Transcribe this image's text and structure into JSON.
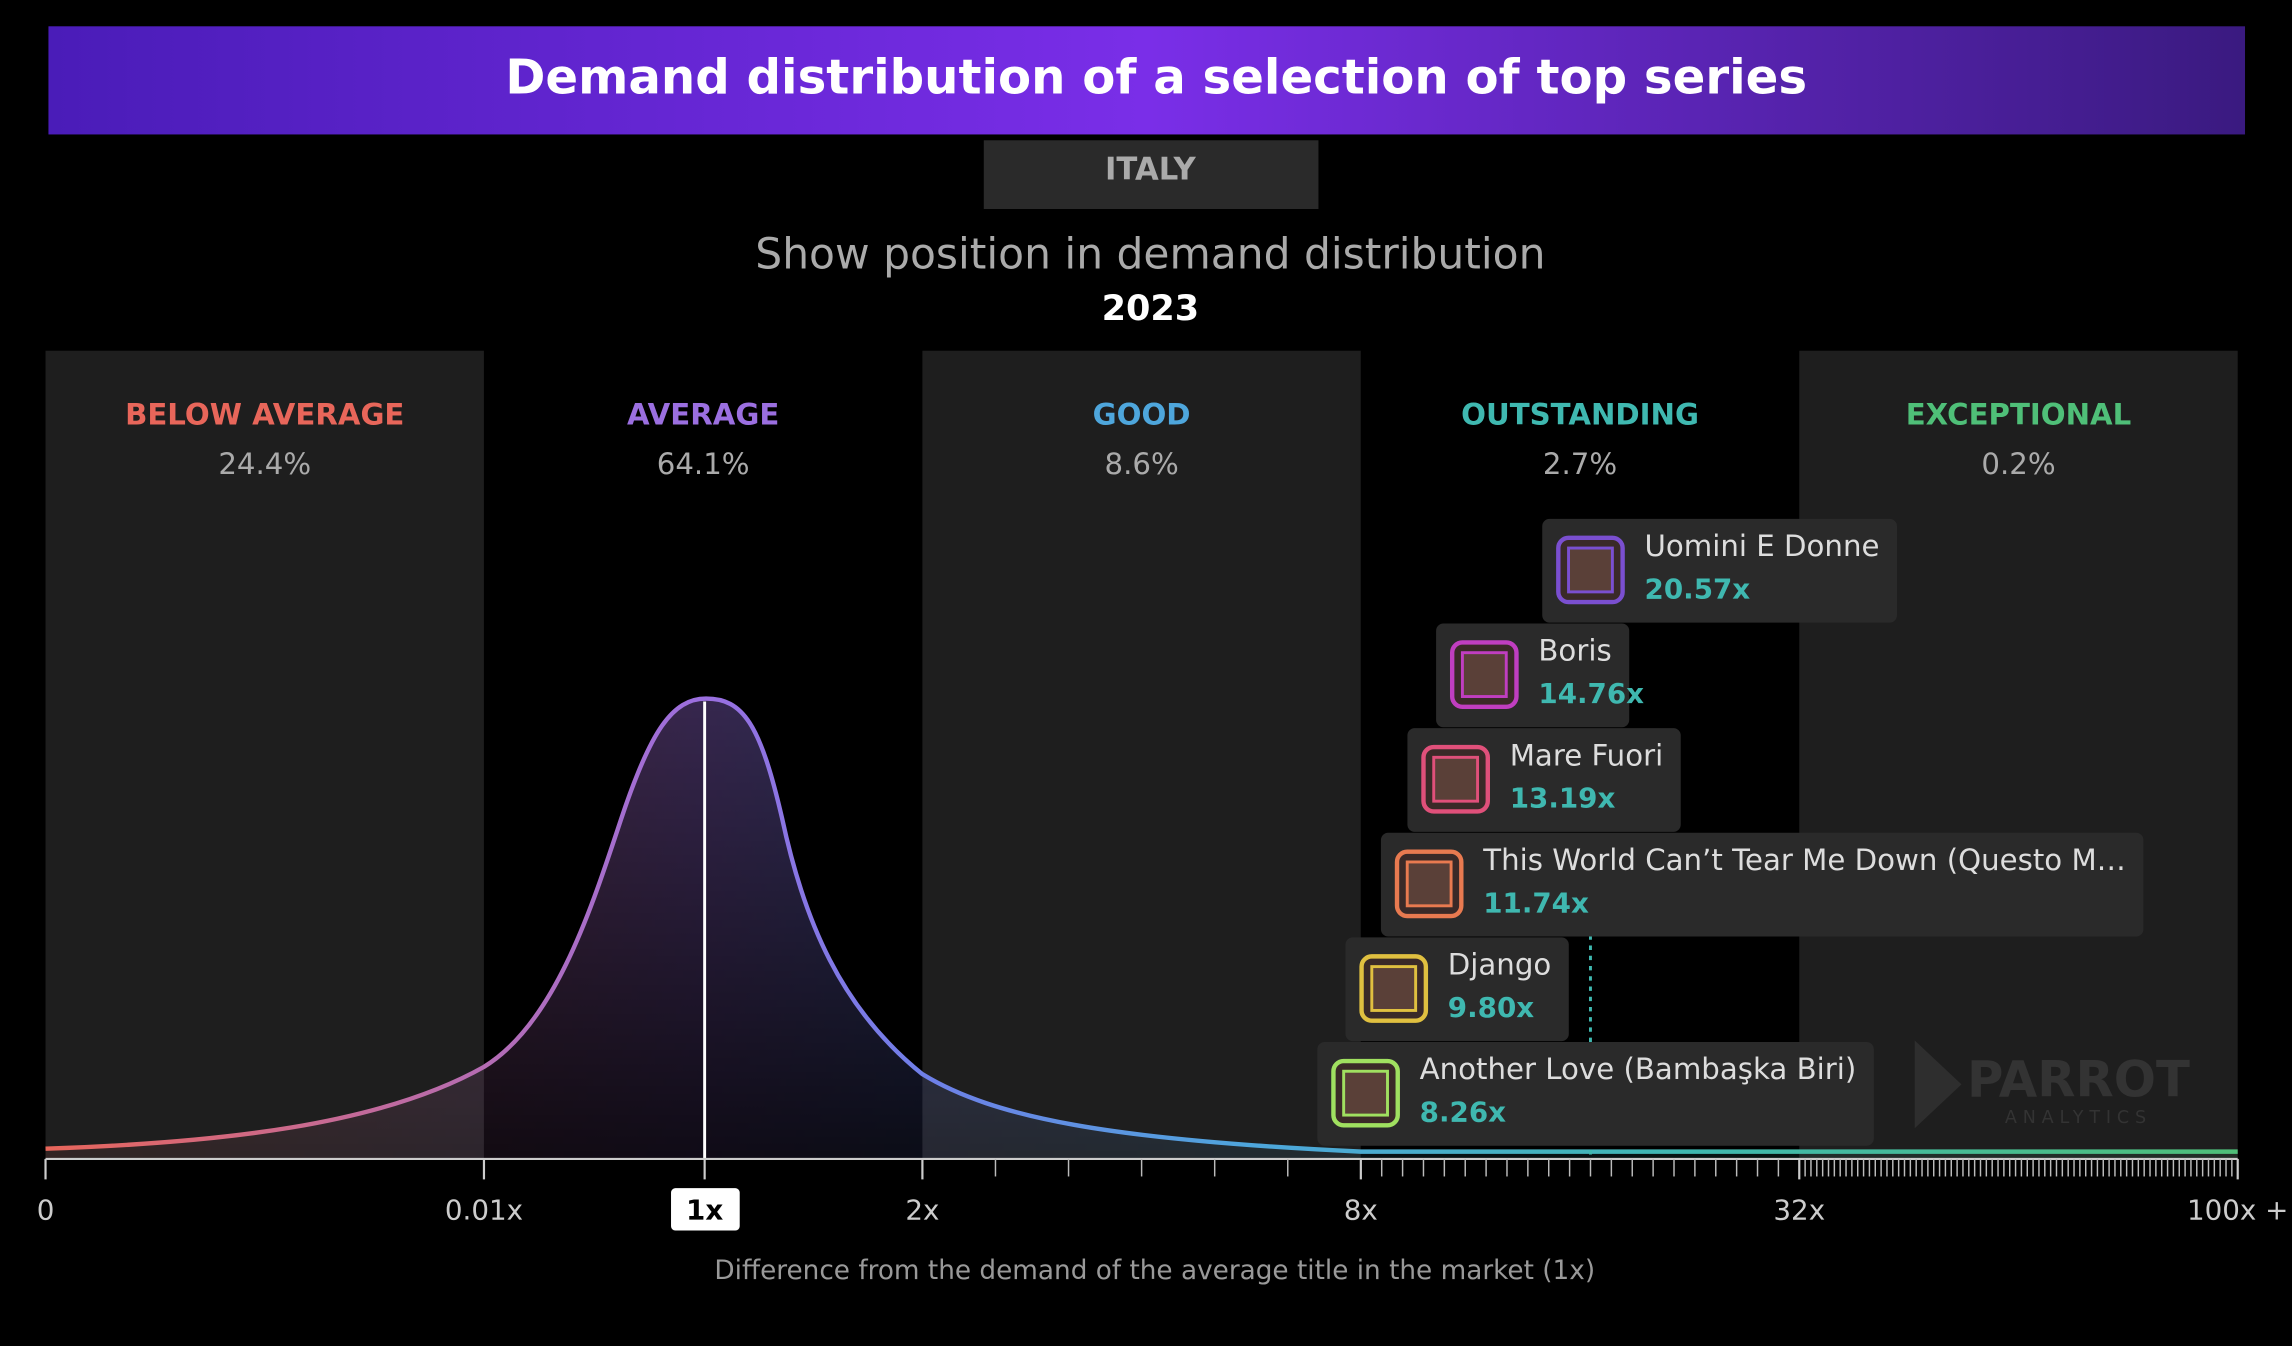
{
  "chart_data": {
    "type": "distribution",
    "title": "Demand distribution of a selection of top series",
    "region": "ITALY",
    "subtitle": "Show position in demand distribution",
    "year": "2023",
    "categories": [
      "BELOW AVERAGE",
      "AVERAGE",
      "GOOD",
      "OUTSTANDING",
      "EXCEPTIONAL"
    ],
    "values": [
      24.4,
      64.1,
      8.6,
      2.7,
      0.2
    ],
    "value_labels": [
      "24.4%",
      "64.1%",
      "8.6%",
      "2.7%",
      "0.2%"
    ],
    "colors": [
      "#e8665a",
      "#9b6fe0",
      "#4ea6dc",
      "#3fb8b0",
      "#4fbf78"
    ],
    "xticks": [
      0,
      {
        "value": 0.01,
        "label": "0.01x"
      },
      {
        "value": 1,
        "label": "1x"
      },
      {
        "value": 2,
        "label": "2x"
      },
      {
        "value": 8,
        "label": "8x"
      },
      {
        "value": 32,
        "label": "32x"
      },
      {
        "value": 100,
        "label": "100x +"
      }
    ],
    "xlabel": "Difference from the demand of the average title in the market (1x)",
    "shows": [
      {
        "name": "Uomini E Donne",
        "value": 20.57,
        "value_label": "20.57x",
        "color": "#7a4fd0"
      },
      {
        "name": "Boris",
        "value": 14.76,
        "value_label": "14.76x",
        "color": "#c03ec0"
      },
      {
        "name": "Mare Fuori",
        "value": 13.19,
        "value_label": "13.19x",
        "color": "#e0507a"
      },
      {
        "name": "This World Can’t Tear Me Down (Questo M…",
        "value": 11.74,
        "value_label": "11.74x",
        "color": "#e87a50"
      },
      {
        "name": "Django",
        "value": 9.8,
        "value_label": "9.80x",
        "color": "#e0c040"
      },
      {
        "name": "Another Love (Bambaşka Biri)",
        "value": 8.26,
        "value_label": "8.26x",
        "color": "#a0e060"
      }
    ]
  },
  "watermark": {
    "name": "PARROT",
    "sub": "ANALYTICS"
  }
}
